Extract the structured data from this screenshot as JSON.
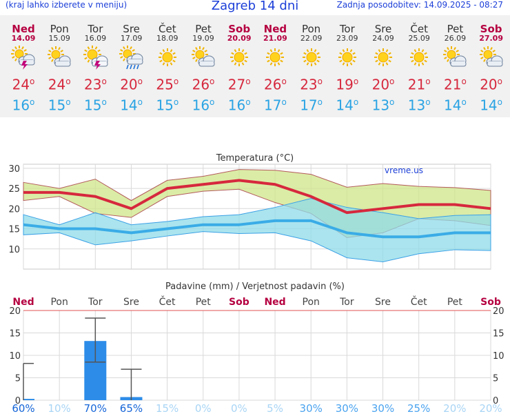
{
  "header": {
    "menu_note": "(kraj lahko izberete v meniju)",
    "title": "Zagreb 14 dni",
    "updated": "Zadnja posodobitev: 14.09.2025 - 08:27"
  },
  "days": [
    {
      "name": "Ned",
      "date": "14.09",
      "weekend": true,
      "icon": "sun-cloud-storm-icon",
      "max": "24",
      "min": "16"
    },
    {
      "name": "Pon",
      "date": "15.09",
      "weekend": false,
      "icon": "sun-cloud-icon",
      "max": "24",
      "min": "15"
    },
    {
      "name": "Tor",
      "date": "16.09",
      "weekend": false,
      "icon": "sun-storm-icon",
      "max": "23",
      "min": "15"
    },
    {
      "name": "Sre",
      "date": "17.09",
      "weekend": false,
      "icon": "sun-cloud-rain-icon",
      "max": "20",
      "min": "14"
    },
    {
      "name": "Čet",
      "date": "18.09",
      "weekend": false,
      "icon": "sun-icon",
      "max": "25",
      "min": "15"
    },
    {
      "name": "Pet",
      "date": "19.09",
      "weekend": false,
      "icon": "sun-cloud-icon",
      "max": "26",
      "min": "16"
    },
    {
      "name": "Sob",
      "date": "20.09",
      "weekend": true,
      "icon": "sun-icon",
      "max": "27",
      "min": "16"
    },
    {
      "name": "Ned",
      "date": "21.09",
      "weekend": true,
      "icon": "sun-icon",
      "max": "26",
      "min": "17"
    },
    {
      "name": "Pon",
      "date": "22.09",
      "weekend": false,
      "icon": "sun-icon",
      "max": "23",
      "min": "17"
    },
    {
      "name": "Tor",
      "date": "23.09",
      "weekend": false,
      "icon": "sun-icon",
      "max": "19",
      "min": "14"
    },
    {
      "name": "Sre",
      "date": "24.09",
      "weekend": false,
      "icon": "sun-icon",
      "max": "20",
      "min": "13"
    },
    {
      "name": "Čet",
      "date": "25.09",
      "weekend": false,
      "icon": "sun-icon",
      "max": "21",
      "min": "13"
    },
    {
      "name": "Pet",
      "date": "26.09",
      "weekend": false,
      "icon": "sun-cloud-icon",
      "max": "21",
      "min": "14"
    },
    {
      "name": "Sob",
      "date": "27.09",
      "weekend": true,
      "icon": "sun-cloud-icon",
      "max": "20",
      "min": "14"
    }
  ],
  "degree_symbol": "o",
  "colors": {
    "max_line": "#d6283d",
    "min_line": "#3aace6",
    "max_band": "#cfe68a",
    "min_band": "#8fdbe8",
    "bars": "#2d8ce8",
    "weekend": "#b50040",
    "title": "#1c3fd8"
  },
  "chart_data": [
    {
      "type": "line",
      "title": "Temperatura (°C)",
      "watermark": "vreme.us",
      "ylim": [
        5,
        31
      ],
      "yticks": [
        10,
        15,
        20,
        25,
        30
      ],
      "x": [
        "14.09",
        "15.09",
        "16.09",
        "17.09",
        "18.09",
        "19.09",
        "20.09",
        "21.09",
        "22.09",
        "23.09",
        "24.09",
        "25.09",
        "26.09",
        "27.09"
      ],
      "series": [
        {
          "name": "max",
          "values": [
            24,
            24,
            23,
            20,
            25,
            26,
            27,
            26,
            23,
            19,
            20,
            21,
            21,
            20
          ]
        },
        {
          "name": "min",
          "values": [
            16,
            15,
            15,
            14,
            15,
            16,
            16,
            17,
            17,
            14,
            13,
            13,
            14,
            14
          ]
        }
      ],
      "max_band_upper": [
        26.5,
        25,
        27.3,
        22,
        27,
        28,
        29.7,
        29.5,
        28.5,
        25.3,
        26.2,
        25.5,
        25.2,
        24.5
      ],
      "max_band_lower": [
        22,
        23,
        18.8,
        17.8,
        23,
        24.3,
        24.8,
        21.5,
        18.8,
        12.8,
        14,
        17.5,
        17,
        15.8
      ],
      "min_band_upper": [
        18.5,
        16,
        19,
        16,
        16.8,
        18,
        18.5,
        20.3,
        22.5,
        20.3,
        19,
        17.5,
        18.3,
        18.5
      ],
      "min_band_lower": [
        13.5,
        14,
        11,
        12,
        13.2,
        14.3,
        13.8,
        14,
        12,
        7.8,
        6.8,
        8.8,
        9.8,
        9.6
      ]
    },
    {
      "type": "bar",
      "title": "Padavine (mm) / Verjetnost padavin (%)",
      "categories": [
        "Ned",
        "Pon",
        "Tor",
        "Sre",
        "Čet",
        "Pet",
        "Sob",
        "Ned",
        "Pon",
        "Tor",
        "Sre",
        "Čet",
        "Pet",
        "Sob"
      ],
      "weekend": [
        true,
        false,
        false,
        false,
        false,
        false,
        true,
        true,
        false,
        false,
        false,
        false,
        false,
        true
      ],
      "values": [
        0.3,
        0,
        13.2,
        0.7,
        0,
        0,
        0,
        0,
        0,
        0,
        0,
        0,
        0,
        0
      ],
      "error_low": [
        0,
        null,
        8.5,
        0,
        null,
        null,
        null,
        null,
        null,
        null,
        null,
        null,
        null,
        null
      ],
      "error_high": [
        8.2,
        null,
        18.3,
        6.9,
        null,
        null,
        null,
        null,
        null,
        null,
        null,
        null,
        null,
        null
      ],
      "probability": [
        "60%",
        "10%",
        "70%",
        "65%",
        "15%",
        "0%",
        "0%",
        "5%",
        "30%",
        "30%",
        "30%",
        "25%",
        "20%",
        "20%"
      ],
      "ylim": [
        0,
        20
      ],
      "yticks": [
        0,
        5,
        10,
        15,
        20
      ]
    }
  ]
}
